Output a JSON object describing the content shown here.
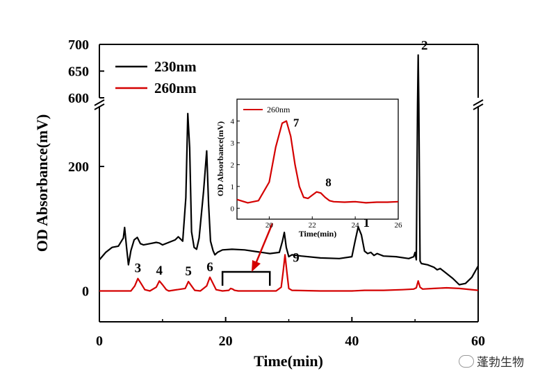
{
  "chart_data": {
    "type": "line",
    "xlabel": "Time(min)",
    "ylabel": "OD Absorbance(mV)",
    "xlim": [
      0,
      60
    ],
    "ylim": [
      -50,
      700
    ],
    "y_axis_break": [
      300,
      600
    ],
    "x_ticks": [
      "0",
      "20",
      "40",
      "60"
    ],
    "y_ticks": [
      "0",
      "200",
      "600",
      "650",
      "700"
    ],
    "legend": [
      {
        "name": "230nm",
        "color": "#000000"
      },
      {
        "name": "260nm",
        "color": "#d40000"
      }
    ],
    "series": [
      {
        "name": "230nm",
        "x": [
          0,
          1,
          2,
          3,
          3.8,
          4.0,
          4.3,
          4.6,
          5.0,
          5.5,
          6.0,
          6.5,
          7.0,
          8.0,
          9.0,
          9.5,
          10,
          11,
          12,
          12.5,
          13.2,
          13.7,
          14.0,
          14.3,
          14.6,
          15.0,
          15.4,
          15.8,
          16.5,
          17.0,
          17.3,
          17.6,
          18.0,
          18.3,
          18.7,
          19.5,
          21,
          23,
          25,
          27,
          28.5,
          29.0,
          29.3,
          29.6,
          30.0,
          30.5,
          32,
          35,
          38,
          40.0,
          40.5,
          41.0,
          41.5,
          42.0,
          42.5,
          43,
          43.5,
          44,
          44.5,
          45,
          47,
          49,
          49.8,
          50.0,
          50.2,
          50.4,
          50.5,
          50.6,
          50.8,
          51.0,
          52,
          53,
          53.5,
          54,
          55,
          56,
          57,
          58,
          59,
          60
        ],
        "y": [
          50,
          62,
          70,
          72,
          85,
          102,
          70,
          42,
          65,
          82,
          86,
          76,
          74,
          76,
          78,
          77,
          74,
          78,
          82,
          87,
          80,
          150,
          285,
          230,
          95,
          70,
          67,
          85,
          160,
          225,
          140,
          80,
          65,
          58,
          62,
          66,
          67,
          66,
          63,
          60,
          62,
          80,
          94,
          70,
          55,
          58,
          56,
          53,
          52,
          55,
          80,
          103,
          90,
          64,
          60,
          62,
          57,
          60,
          58,
          56,
          55,
          52,
          55,
          62,
          50,
          300,
          680,
          300,
          48,
          44,
          42,
          38,
          34,
          36,
          28,
          20,
          10,
          12,
          22,
          40
        ]
      },
      {
        "name": "260nm",
        "x": [
          0,
          5,
          5.6,
          6.1,
          6.6,
          7.2,
          8,
          9.0,
          9.5,
          10.0,
          10.6,
          11,
          13.6,
          14.1,
          14.6,
          15.1,
          16,
          17.0,
          17.5,
          18.0,
          18.5,
          19.5,
          20.5,
          20.8,
          21.1,
          21.4,
          22,
          28,
          28.8,
          29.1,
          29.4,
          29.7,
          30.0,
          30.5,
          35,
          40,
          42,
          45,
          48,
          49.8,
          50.2,
          50.5,
          50.8,
          51.2,
          53,
          55,
          57,
          60
        ],
        "y": [
          0,
          0,
          8,
          20,
          12,
          2,
          0,
          6,
          16,
          10,
          2,
          0,
          4,
          15,
          8,
          1,
          0,
          8,
          22,
          12,
          2,
          0,
          1,
          4,
          3,
          1,
          0,
          0,
          6,
          30,
          58,
          30,
          4,
          1,
          0,
          0,
          1,
          1,
          2,
          3,
          5,
          16,
          6,
          3,
          4,
          5,
          4,
          1
        ]
      }
    ],
    "peak_labels": [
      {
        "label": "1",
        "x": 41.2,
        "y": 103
      },
      {
        "label": "2",
        "x": 50.5,
        "y": 680
      },
      {
        "label": "3",
        "x": 6.1,
        "y": 20
      },
      {
        "label": "4",
        "x": 9.5,
        "y": 16
      },
      {
        "label": "5",
        "x": 14.1,
        "y": 15
      },
      {
        "label": "6",
        "x": 17.5,
        "y": 22
      },
      {
        "label": "9",
        "x": 29.4,
        "y": 58
      }
    ],
    "bracket": {
      "x_start": 19.5,
      "x_end": 27.0
    },
    "inset": {
      "type": "line",
      "xlabel": "Time(min)",
      "ylabel": "OD Absorbance(mV)",
      "xlim": [
        18.5,
        26
      ],
      "ylim": [
        -0.5,
        5
      ],
      "x_ticks": [
        "20",
        "22",
        "24",
        "26"
      ],
      "y_ticks": [
        "0",
        "1",
        "2",
        "3",
        "4"
      ],
      "legend": "260nm",
      "color": "#d40000",
      "series": {
        "name": "260nm",
        "x": [
          18.5,
          19.0,
          19.5,
          20.0,
          20.3,
          20.6,
          20.8,
          21.0,
          21.2,
          21.4,
          21.6,
          21.8,
          22.0,
          22.2,
          22.4,
          22.6,
          22.8,
          23.0,
          23.5,
          24.0,
          24.5,
          25.0,
          25.5,
          26.0
        ],
        "y": [
          0.4,
          0.25,
          0.35,
          1.2,
          2.8,
          3.9,
          4.0,
          3.3,
          2.0,
          1.0,
          0.5,
          0.45,
          0.6,
          0.75,
          0.7,
          0.5,
          0.35,
          0.3,
          0.28,
          0.3,
          0.25,
          0.28,
          0.28,
          0.3
        ]
      },
      "peak_labels": [
        {
          "label": "7",
          "x": 20.8,
          "y": 4.0
        },
        {
          "label": "8",
          "x": 22.3,
          "y": 0.75
        }
      ]
    }
  },
  "watermark": "蓬勃生物"
}
